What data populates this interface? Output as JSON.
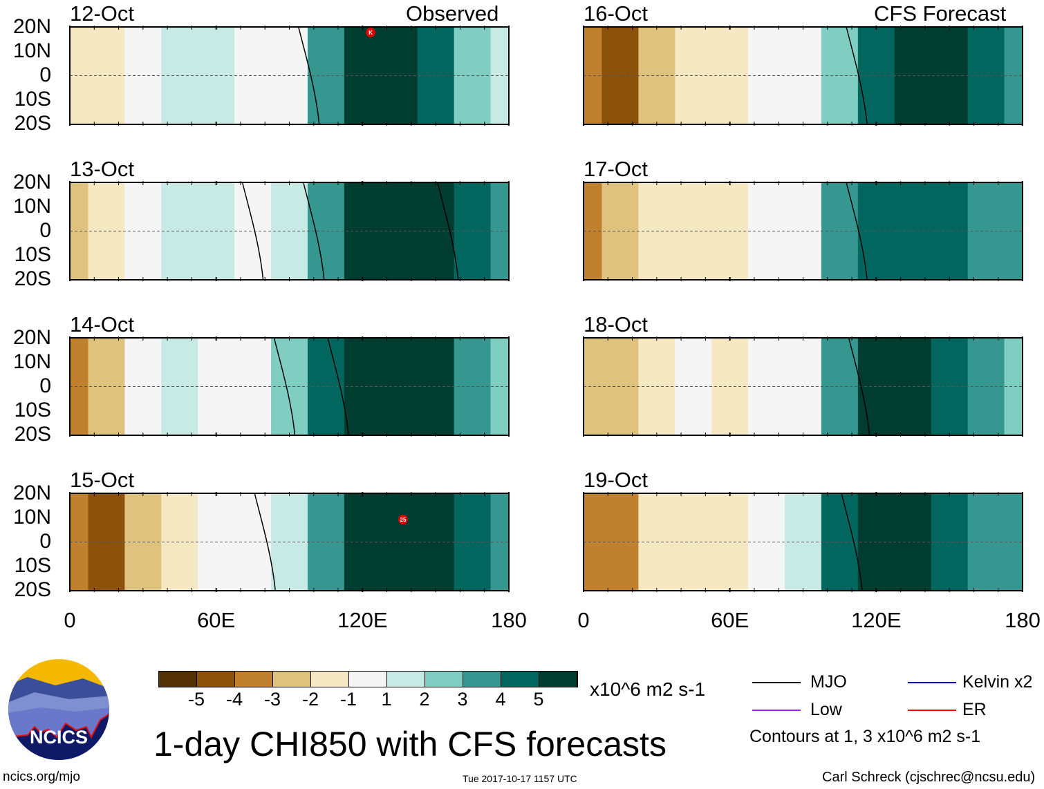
{
  "figure": {
    "title": "1-day CHI850 with CFS forecasts",
    "observed_label": "Observed",
    "forecast_label": "CFS Forecast",
    "units": "x10^6 m2 s-1",
    "website": "ncics.org/mjo",
    "timestamp": "Tue 2017-10-17 1157 UTC",
    "author": "Carl Schreck (cjschrec@ncsu.edu)",
    "logo_text": "NCICS"
  },
  "axes": {
    "lat_labels": [
      "20N",
      "10N",
      "0",
      "10S",
      "20S"
    ],
    "lon_labels": [
      "0",
      "60E",
      "120E",
      "180"
    ]
  },
  "colorbar": {
    "colors": [
      "#543005",
      "#8c510a",
      "#bf812d",
      "#dfc27d",
      "#f6e8c3",
      "#f5f5f5",
      "#c7eae5",
      "#80cdc1",
      "#35978f",
      "#01665e",
      "#003c30"
    ],
    "labels": [
      "-5",
      "-4",
      "-3",
      "-2",
      "-1",
      "1",
      "2",
      "3",
      "4",
      "5"
    ]
  },
  "legend": {
    "items": [
      {
        "label": "MJO",
        "color": "#000000"
      },
      {
        "label": "Kelvin x2",
        "color": "#0000ff"
      },
      {
        "label": "Low",
        "color": "#a020f0"
      },
      {
        "label": "ER",
        "color": "#ff0000"
      }
    ],
    "note": "Contours at 1, 3 x10^6 m2 s-1"
  },
  "map_data": {
    "band_longitudes": [
      0,
      15,
      30,
      45,
      60,
      75,
      90,
      105,
      120,
      135,
      150,
      165,
      180
    ],
    "panels": [
      {
        "date": "12-Oct",
        "values": [
          -2,
          -1.5,
          -0.5,
          1.5,
          1,
          -0.5,
          -0.5,
          3,
          5,
          5,
          4,
          2,
          1.5
        ],
        "mjo_lon": [
          98
        ],
        "marker": "K"
      },
      {
        "date": "13-Oct",
        "values": [
          -3,
          -2,
          -0.5,
          1.5,
          1,
          -0.5,
          1,
          3,
          5,
          5,
          5,
          4,
          3
        ],
        "mjo_lon": [
          75,
          100,
          155
        ]
      },
      {
        "date": "14-Oct",
        "values": [
          -4,
          -3,
          -1,
          1,
          -0.5,
          -0.5,
          2,
          4,
          5,
          5,
          5,
          3,
          2
        ],
        "mjo_lon": [
          88,
          110
        ]
      },
      {
        "date": "15-Oct",
        "values": [
          -4,
          -5,
          -3,
          -2,
          -1,
          -0.5,
          1,
          3,
          5,
          5,
          5,
          4,
          3
        ],
        "mjo_lon": [
          80
        ],
        "marker": "25"
      },
      {
        "date": "16-Oct",
        "values": [
          -4,
          -5,
          -3,
          -2,
          -2,
          -1,
          -0.5,
          2,
          4,
          5,
          5,
          4,
          3
        ],
        "mjo_lon": [
          112
        ]
      },
      {
        "date": "17-Oct",
        "values": [
          -4,
          -3,
          -2,
          -2,
          -2,
          -1,
          -0.5,
          3,
          4,
          4,
          4,
          3,
          3
        ],
        "mjo_lon": [
          112
        ]
      },
      {
        "date": "18-Oct",
        "values": [
          -3,
          -3,
          -2,
          -1,
          -1.5,
          -0.5,
          -0.5,
          3,
          5,
          5,
          4,
          3,
          2
        ],
        "mjo_lon": [
          113
        ]
      },
      {
        "date": "19-Oct",
        "values": [
          -4,
          -4,
          -2,
          -1.5,
          -1.5,
          -1,
          1,
          4,
          5,
          5,
          4,
          3,
          3
        ],
        "mjo_lon": [
          110
        ]
      }
    ]
  }
}
